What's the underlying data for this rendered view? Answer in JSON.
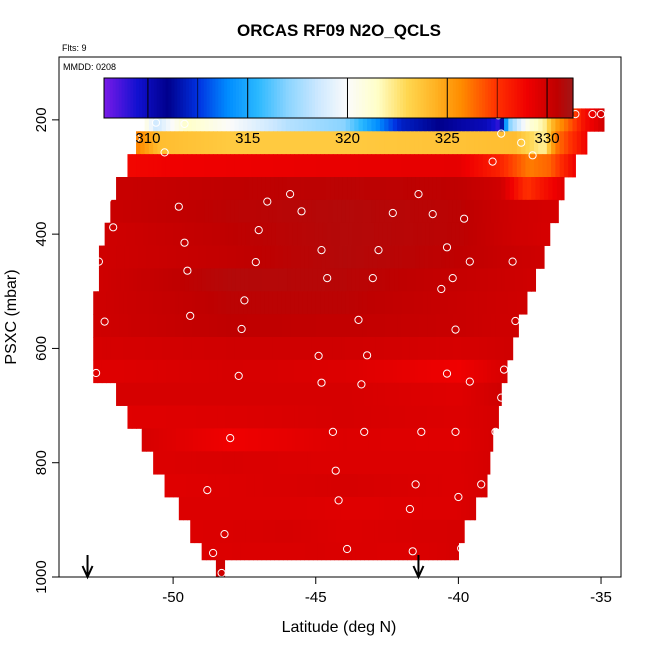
{
  "chart_data": {
    "type": "heatmap",
    "title": "ORCAS RF09 N2O_QCLS",
    "xlabel": "Latitude (deg N)",
    "ylabel": "PSXC (mbar)",
    "top_left_label": "Flts: 9",
    "panel_label": "MMDD: 0208",
    "xlim": [
      -54,
      -34.3
    ],
    "ylim": [
      1000,
      90
    ],
    "x_ticks": [
      -50,
      -45,
      -40,
      -35
    ],
    "x_tick_labels": [
      "-50",
      "-45",
      "-40",
      "-35"
    ],
    "y_ticks": [
      200,
      400,
      600,
      800,
      1000
    ],
    "y_tick_labels": [
      "200",
      "400",
      "600",
      "800",
      "1000"
    ],
    "colorbar": {
      "range": [
        307.8,
        331.3
      ],
      "ticks": [
        310,
        315,
        320,
        325,
        330
      ],
      "tick_labels": [
        "310",
        "315",
        "320",
        "325",
        "330"
      ],
      "stops": [
        {
          "v": 307.8,
          "c": "#7a1ae8"
        },
        {
          "v": 309.5,
          "c": "#1010d0"
        },
        {
          "v": 311.0,
          "c": "#00008c"
        },
        {
          "v": 312.5,
          "c": "#0030e0"
        },
        {
          "v": 314.0,
          "c": "#008cff"
        },
        {
          "v": 315.5,
          "c": "#2ab8ff"
        },
        {
          "v": 317.0,
          "c": "#8ad4ff"
        },
        {
          "v": 318.5,
          "c": "#cce8ff"
        },
        {
          "v": 320.0,
          "c": "#fbfbfb"
        },
        {
          "v": 321.5,
          "c": "#ffffc8"
        },
        {
          "v": 323.0,
          "c": "#ffd750"
        },
        {
          "v": 324.5,
          "c": "#ffb020"
        },
        {
          "v": 325.7,
          "c": "#ff8c00"
        },
        {
          "v": 327.5,
          "c": "#ff3000"
        },
        {
          "v": 329.0,
          "c": "#f00000"
        },
        {
          "v": 330.5,
          "c": "#bf0000"
        },
        {
          "v": 331.3,
          "c": "#a01818"
        }
      ]
    },
    "bands": [
      {
        "p": [
          180,
          220
        ],
        "lat": [
          -51.0,
          -34.9
        ],
        "points": [
          [
            -51.0,
            321
          ],
          [
            -50.6,
            318.5
          ],
          [
            -49.5,
            321.5
          ],
          [
            -48,
            320
          ],
          [
            -46,
            318
          ],
          [
            -44,
            317
          ],
          [
            -42,
            312
          ],
          [
            -40,
            310.5
          ],
          [
            -39,
            310
          ],
          [
            -38.6,
            309
          ],
          [
            -38.2,
            317
          ],
          [
            -37.5,
            321
          ],
          [
            -37.0,
            322
          ],
          [
            -36.6,
            325
          ],
          [
            -36.0,
            327
          ],
          [
            -35.6,
            328.5
          ],
          [
            -34.9,
            330
          ]
        ]
      },
      {
        "p": [
          220,
          260
        ],
        "lat": [
          -51.3,
          -35.5
        ],
        "points": [
          [
            -51.3,
            326
          ],
          [
            -50.5,
            324
          ],
          [
            -48,
            323.5
          ],
          [
            -44,
            323.5
          ],
          [
            -40,
            323.8
          ],
          [
            -38,
            324
          ],
          [
            -37.0,
            322
          ],
          [
            -36.6,
            326
          ],
          [
            -35.5,
            329
          ]
        ]
      },
      {
        "p": [
          260,
          300
        ],
        "lat": [
          -51.6,
          -35.9
        ],
        "points": [
          [
            -51.6,
            328.8
          ],
          [
            -50,
            329
          ],
          [
            -45,
            329.2
          ],
          [
            -40,
            329.3
          ],
          [
            -38.6,
            328
          ],
          [
            -37.5,
            326
          ],
          [
            -36.8,
            326.5
          ],
          [
            -35.9,
            329
          ]
        ]
      },
      {
        "p": [
          300,
          340
        ],
        "lat": [
          -52.0,
          -36.3
        ],
        "points": [
          [
            -52.0,
            330.2
          ],
          [
            -48,
            330.5
          ],
          [
            -44,
            330.6
          ],
          [
            -40,
            330.5
          ],
          [
            -38.5,
            330
          ],
          [
            -37.6,
            327.5
          ],
          [
            -37.0,
            328.5
          ],
          [
            -36.3,
            329.5
          ]
        ]
      },
      {
        "p": [
          340,
          380
        ],
        "lat": [
          -52.2,
          -36.5
        ],
        "points": [
          [
            -52.2,
            330.2
          ],
          [
            -48,
            330.6
          ],
          [
            -44,
            330.8
          ],
          [
            -40,
            330.6
          ],
          [
            -38,
            330
          ],
          [
            -36.5,
            329.8
          ]
        ]
      },
      {
        "p": [
          380,
          420
        ],
        "lat": [
          -52.4,
          -36.8
        ],
        "points": [
          [
            -52.4,
            330
          ],
          [
            -48,
            330.5
          ],
          [
            -44,
            330.8
          ],
          [
            -40,
            330.6
          ],
          [
            -38,
            330
          ],
          [
            -36.8,
            329.8
          ]
        ]
      },
      {
        "p": [
          420,
          460
        ],
        "lat": [
          -52.6,
          -37.0
        ],
        "points": [
          [
            -52.6,
            330
          ],
          [
            -48,
            330.4
          ],
          [
            -44,
            330.8
          ],
          [
            -40,
            330.5
          ],
          [
            -37,
            330
          ]
        ]
      },
      {
        "p": [
          460,
          500
        ],
        "lat": [
          -52.6,
          -37.3
        ],
        "points": [
          [
            -52.6,
            330
          ],
          [
            -48,
            330.8
          ],
          [
            -44,
            330.7
          ],
          [
            -40,
            330.3
          ],
          [
            -37.3,
            330
          ]
        ]
      },
      {
        "p": [
          500,
          540
        ],
        "lat": [
          -52.8,
          -37.6
        ],
        "points": [
          [
            -52.8,
            330
          ],
          [
            -48,
            330.6
          ],
          [
            -44,
            330.6
          ],
          [
            -40,
            330.2
          ],
          [
            -37.6,
            330
          ]
        ]
      },
      {
        "p": [
          540,
          580
        ],
        "lat": [
          -52.8,
          -37.9
        ],
        "points": [
          [
            -52.8,
            330
          ],
          [
            -48,
            330.5
          ],
          [
            -44,
            330.4
          ],
          [
            -40,
            330.2
          ],
          [
            -37.9,
            330
          ]
        ]
      },
      {
        "p": [
          580,
          620
        ],
        "lat": [
          -52.8,
          -38.1
        ],
        "points": [
          [
            -52.8,
            329.8
          ],
          [
            -48,
            330
          ],
          [
            -44,
            330
          ],
          [
            -40,
            329.8
          ],
          [
            -38.1,
            330
          ]
        ]
      },
      {
        "p": [
          620,
          660
        ],
        "lat": [
          -52.8,
          -38.3
        ],
        "points": [
          [
            -52.8,
            329.5
          ],
          [
            -48,
            329.8
          ],
          [
            -44,
            329.6
          ],
          [
            -40,
            329
          ],
          [
            -38.3,
            329.8
          ]
        ]
      },
      {
        "p": [
          660,
          700
        ],
        "lat": [
          -52.0,
          -38.5
        ],
        "points": [
          [
            -52.0,
            329.8
          ],
          [
            -48,
            329.8
          ],
          [
            -44,
            329.8
          ],
          [
            -40,
            329.5
          ],
          [
            -38.5,
            330
          ]
        ]
      },
      {
        "p": [
          700,
          740
        ],
        "lat": [
          -51.6,
          -38.6
        ],
        "points": [
          [
            -51.6,
            329.5
          ],
          [
            -48,
            329.6
          ],
          [
            -44,
            329.8
          ],
          [
            -40,
            329.6
          ],
          [
            -38.6,
            329.8
          ]
        ]
      },
      {
        "p": [
          740,
          780
        ],
        "lat": [
          -51.1,
          -38.8
        ],
        "points": [
          [
            -51.1,
            329.8
          ],
          [
            -48,
            329
          ],
          [
            -44,
            329.6
          ],
          [
            -40,
            329.5
          ],
          [
            -38.8,
            329.8
          ]
        ]
      },
      {
        "p": [
          780,
          820
        ],
        "lat": [
          -50.7,
          -38.9
        ],
        "points": [
          [
            -50.7,
            329.6
          ],
          [
            -48,
            329.7
          ],
          [
            -44,
            329.6
          ],
          [
            -40,
            329.6
          ],
          [
            -38.9,
            329.8
          ]
        ]
      },
      {
        "p": [
          820,
          860
        ],
        "lat": [
          -50.3,
          -39.0
        ],
        "points": [
          [
            -50.3,
            329.5
          ],
          [
            -48,
            329.6
          ],
          [
            -44,
            329.8
          ],
          [
            -40,
            329.6
          ],
          [
            -39.0,
            329.8
          ]
        ]
      },
      {
        "p": [
          860,
          900
        ],
        "lat": [
          -49.8,
          -39.4
        ],
        "points": [
          [
            -49.8,
            329.6
          ],
          [
            -46,
            329.6
          ],
          [
            -44,
            329.5
          ],
          [
            -40,
            329.6
          ],
          [
            -39.4,
            329.8
          ]
        ]
      },
      {
        "p": [
          900,
          940
        ],
        "lat": [
          -49.4,
          -39.8
        ],
        "points": [
          [
            -49.4,
            329.6
          ],
          [
            -46,
            329.8
          ],
          [
            -44,
            329.6
          ],
          [
            -40,
            329.8
          ],
          [
            -39.8,
            329.8
          ]
        ]
      },
      {
        "p": [
          940,
          970
        ],
        "lat": [
          -49.0,
          -40.0
        ],
        "points": [
          [
            -49.0,
            329.6
          ],
          [
            -45,
            329.7
          ],
          [
            -42,
            329.6
          ],
          [
            -40,
            329.8
          ]
        ]
      },
      {
        "p": [
          970,
          1000
        ],
        "lat": [
          -48.5,
          -48.2
        ],
        "points": [
          [
            -48.5,
            330
          ],
          [
            -48.2,
            330
          ]
        ]
      }
    ],
    "obs_points": [
      [
        -50.8,
        190
      ],
      [
        -50.6,
        205
      ],
      [
        -49.6,
        207
      ],
      [
        -38.6,
        192
      ],
      [
        -38.2,
        190
      ],
      [
        -37.6,
        190
      ],
      [
        -37.0,
        190
      ],
      [
        -36.4,
        190
      ],
      [
        -35.9,
        190
      ],
      [
        -35.3,
        190
      ],
      [
        -35.0,
        190
      ],
      [
        -51.3,
        232
      ],
      [
        -50.3,
        257
      ],
      [
        -38.5,
        224
      ],
      [
        -37.8,
        240
      ],
      [
        -37.4,
        262
      ],
      [
        -38.8,
        273
      ],
      [
        -52.3,
        338
      ],
      [
        -46.7,
        343
      ],
      [
        -45.9,
        330
      ],
      [
        -49.8,
        352
      ],
      [
        -45.5,
        360
      ],
      [
        -41.4,
        330
      ],
      [
        -40.9,
        365
      ],
      [
        -39.8,
        373
      ],
      [
        -42.3,
        363
      ],
      [
        -52.1,
        388
      ],
      [
        -47.0,
        393
      ],
      [
        -49.6,
        415
      ],
      [
        -44.8,
        428
      ],
      [
        -42.8,
        428
      ],
      [
        -40.4,
        423
      ],
      [
        -52.6,
        448
      ],
      [
        -47.1,
        449
      ],
      [
        -49.5,
        464
      ],
      [
        -44.6,
        477
      ],
      [
        -43.0,
        477
      ],
      [
        -40.2,
        477
      ],
      [
        -39.6,
        448
      ],
      [
        -38.1,
        448
      ],
      [
        -40.6,
        496
      ],
      [
        -47.5,
        516
      ],
      [
        -49.4,
        543
      ],
      [
        -47.6,
        566
      ],
      [
        -52.4,
        553
      ],
      [
        -43.5,
        550
      ],
      [
        -40.1,
        567
      ],
      [
        -38.0,
        552
      ],
      [
        -44.9,
        613
      ],
      [
        -44.8,
        660
      ],
      [
        -43.2,
        612
      ],
      [
        -43.4,
        663
      ],
      [
        -40.4,
        644
      ],
      [
        -39.6,
        658
      ],
      [
        -38.4,
        637
      ],
      [
        -38.5,
        686
      ],
      [
        -47.7,
        648
      ],
      [
        -52.7,
        643
      ],
      [
        -38.7,
        746
      ],
      [
        -48.0,
        757
      ],
      [
        -44.4,
        746
      ],
      [
        -43.3,
        746
      ],
      [
        -41.3,
        746
      ],
      [
        -40.1,
        746
      ],
      [
        -44.3,
        814
      ],
      [
        -41.5,
        838
      ],
      [
        -40.0,
        860
      ],
      [
        -39.2,
        838
      ],
      [
        -48.8,
        848
      ],
      [
        -44.2,
        866
      ],
      [
        -41.7,
        881
      ],
      [
        -48.2,
        925
      ],
      [
        -43.9,
        951
      ],
      [
        -41.6,
        955
      ],
      [
        -39.9,
        950
      ],
      [
        -48.6,
        958
      ],
      [
        -48.3,
        993
      ]
    ],
    "arrows": [
      {
        "lat": -53.0
      },
      {
        "lat": -41.4
      }
    ],
    "colors": {
      "frame": "#000000",
      "circle": "#ffffff"
    }
  }
}
